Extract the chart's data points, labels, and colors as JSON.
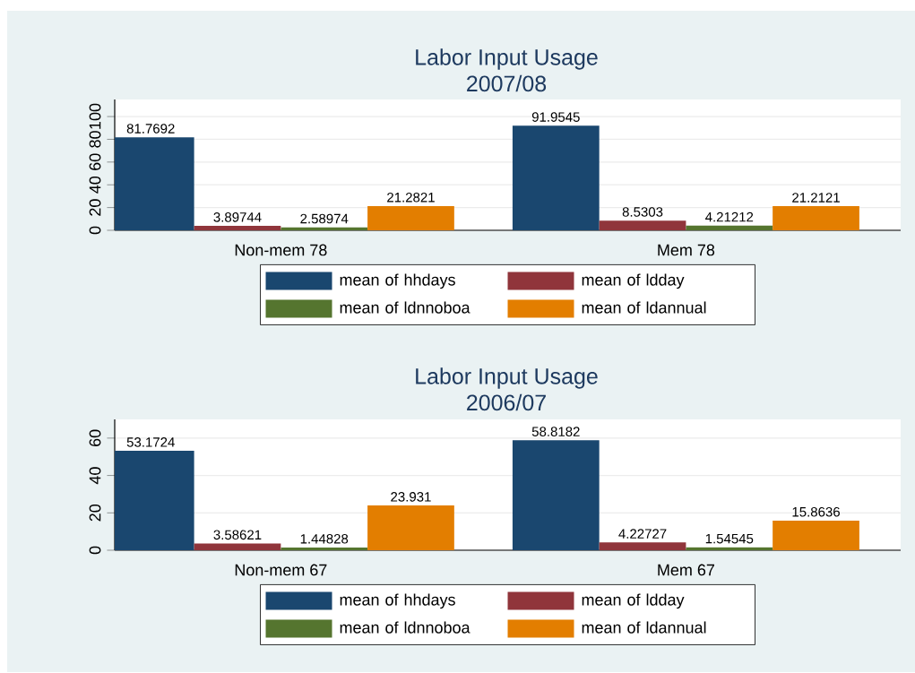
{
  "chart_data": [
    {
      "type": "bar",
      "title": "Labor Input Usage",
      "subtitle": "2007/08",
      "categories": [
        "Non-mem 78",
        "Mem 78"
      ],
      "series": [
        {
          "name": "mean of hhdays",
          "color": "#1a476f",
          "values": [
            81.7692,
            91.9545
          ]
        },
        {
          "name": "mean of ldday",
          "color": "#90353b",
          "values": [
            3.89744,
            8.5303
          ]
        },
        {
          "name": "mean of ldnnoboa",
          "color": "#55752f",
          "values": [
            2.58974,
            4.21212
          ]
        },
        {
          "name": "mean of ldannual",
          "color": "#e37e00",
          "values": [
            21.2821,
            21.2121
          ]
        }
      ],
      "ylim": [
        0,
        115
      ],
      "yticks": [
        0,
        20,
        40,
        60,
        80,
        100
      ],
      "grid": "y",
      "legend": "bottom",
      "data_labels": true
    },
    {
      "type": "bar",
      "title": "Labor Input Usage",
      "subtitle": "2006/07",
      "categories": [
        "Non-mem 67",
        "Mem 67"
      ],
      "series": [
        {
          "name": "mean of hhdays",
          "color": "#1a476f",
          "values": [
            53.1724,
            58.8182
          ]
        },
        {
          "name": "mean of ldday",
          "color": "#90353b",
          "values": [
            3.58621,
            4.22727
          ]
        },
        {
          "name": "mean of ldnnoboa",
          "color": "#55752f",
          "values": [
            1.44828,
            1.54545
          ]
        },
        {
          "name": "mean of ldannual",
          "color": "#e37e00",
          "values": [
            23.931,
            15.8636
          ]
        }
      ],
      "ylim": [
        0,
        70
      ],
      "yticks": [
        0,
        20,
        40,
        60
      ],
      "grid": "y",
      "legend": "bottom",
      "data_labels": true
    }
  ]
}
